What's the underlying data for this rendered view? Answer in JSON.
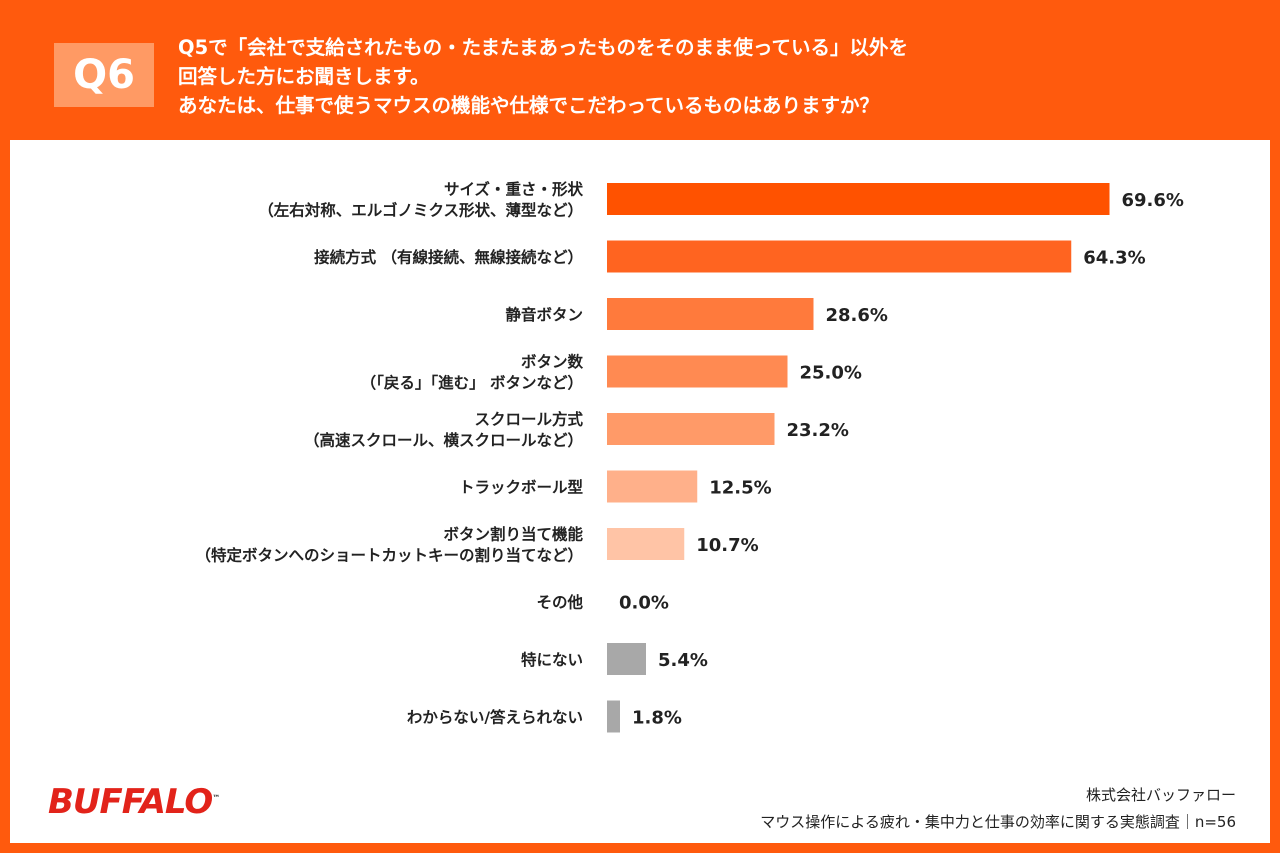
{
  "header": {
    "badge": "Q6",
    "question_lines": [
      "Q5で「会社で支給されたもの・たまたまあったものをそのまま使っている」以外を",
      "回答した方にお聞きします。",
      "あなたは、仕事で使うマウスの機能や仕様でこだわっているものはありますか？"
    ]
  },
  "chart_data": {
    "type": "bar",
    "orientation": "horizontal",
    "categories": [
      [
        "サイズ・重さ・形状",
        "（左右対称、エルゴノミクス形状、薄型など）"
      ],
      [
        "接続方式 （有線接続、無線接続など）"
      ],
      [
        "静音ボタン"
      ],
      [
        "ボタン数",
        "（「戻る」「進む」 ボタンなど）"
      ],
      [
        "スクロール方式",
        "（高速スクロール、横スクロールなど）"
      ],
      [
        "トラックボール型"
      ],
      [
        "ボタン割り当て機能",
        "（特定ボタンへのショートカットキーの割り当てなど）"
      ],
      [
        "その他"
      ],
      [
        "特にない"
      ],
      [
        "わからない/答えられない"
      ]
    ],
    "values": [
      69.6,
      64.3,
      28.6,
      25.0,
      23.2,
      12.5,
      10.7,
      0.0,
      5.4,
      1.8
    ],
    "value_labels": [
      "69.6%",
      "64.3%",
      "28.6%",
      "25.0%",
      "23.2%",
      "12.5%",
      "10.7%",
      "0.0%",
      "5.4%",
      "1.8%"
    ],
    "colors": [
      "#ff5200",
      "#ff6420",
      "#ff7a3c",
      "#ff8a52",
      "#ff9a68",
      "#ffb08a",
      "#ffc4a6",
      "#ffc4a6",
      "#a8a8a8",
      "#a8a8a8"
    ],
    "xlim": [
      0,
      100
    ],
    "grid": false,
    "legend": "none"
  },
  "footer": {
    "company": "株式会社バッファロー",
    "survey": "マウス操作による疲れ・集中力と仕事の効率に関する実態調査｜n=56"
  },
  "logo": {
    "text": "BUFFALO",
    "mark": "™",
    "color": "#e2231a"
  }
}
